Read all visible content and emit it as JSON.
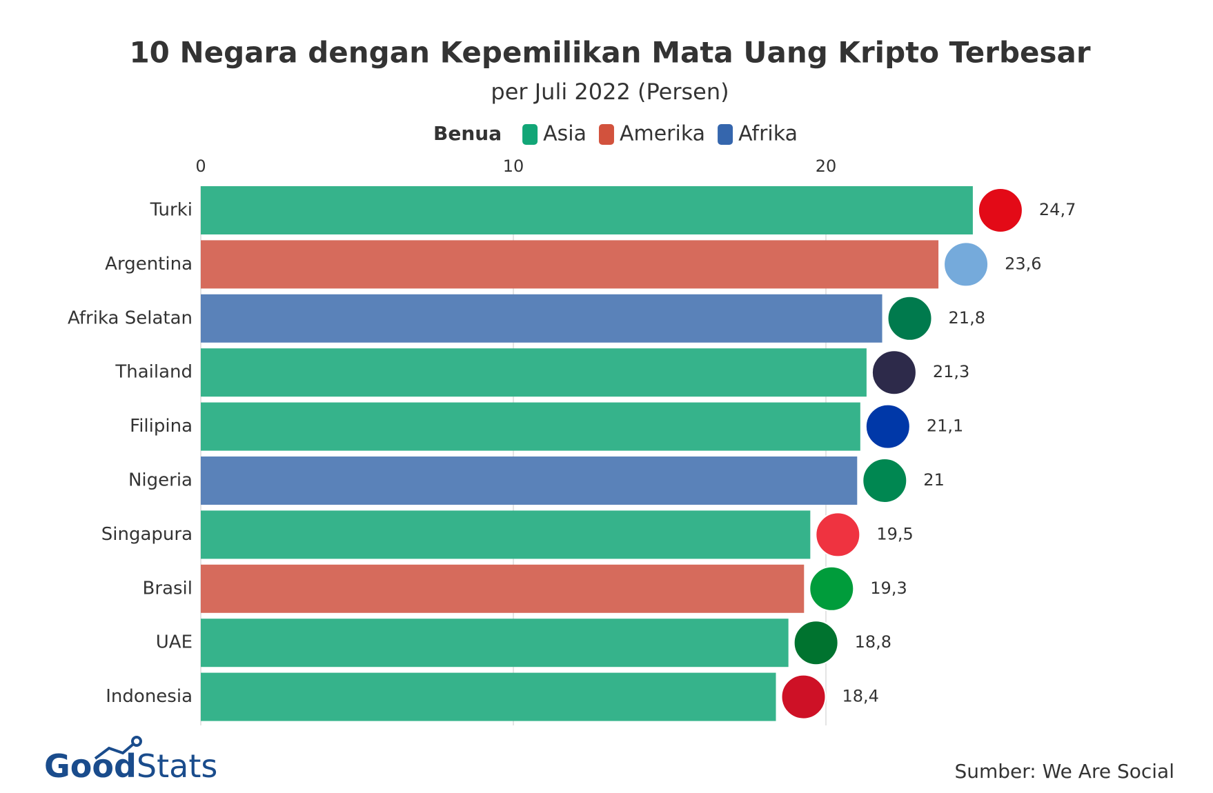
{
  "chart_data": {
    "type": "bar",
    "orientation": "horizontal",
    "title": "10 Negara dengan Kepemilikan Mata Uang Kripto Terbesar",
    "subtitle": "per Juli 2022 (Persen)",
    "legend": {
      "title": "Benua",
      "items": [
        {
          "name": "Asia",
          "color": "#12a677"
        },
        {
          "name": "Amerika",
          "color": "#d2523d"
        },
        {
          "name": "Afrika",
          "color": "#3566ad"
        }
      ]
    },
    "categories": [
      "Turki",
      "Argentina",
      "Afrika Selatan",
      "Thailand",
      "Filipina",
      "Nigeria",
      "Singapura",
      "Brasil",
      "UAE",
      "Indonesia"
    ],
    "values": [
      24.7,
      23.6,
      21.8,
      21.3,
      21.1,
      21,
      19.5,
      19.3,
      18.8,
      18.4
    ],
    "value_labels": [
      "24,7",
      "23,6",
      "21,8",
      "21,3",
      "21,1",
      "21",
      "19,5",
      "19,3",
      "18,8",
      "18,4"
    ],
    "colors": [
      "#36b38b",
      "#d66b5c",
      "#5a82b9",
      "#36b38b",
      "#36b38b",
      "#5a82b9",
      "#36b38b",
      "#d66b5c",
      "#36b38b",
      "#36b38b"
    ],
    "xlim": [
      0,
      29
    ],
    "xticks": [
      0,
      10,
      20
    ],
    "grid": true,
    "source": "Sumber: We Are Social",
    "logo": {
      "part1": "Good",
      "part2": "Stats"
    }
  }
}
